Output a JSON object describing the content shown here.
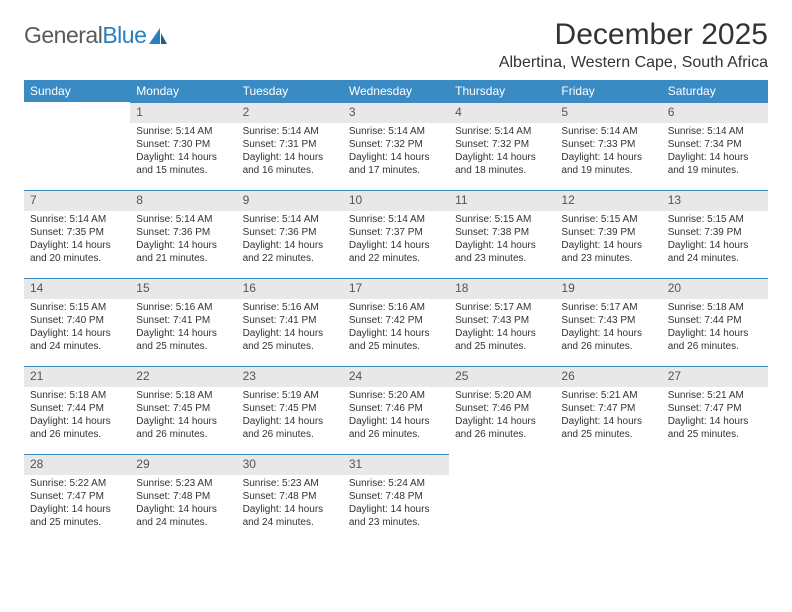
{
  "logo": {
    "part1": "General",
    "part2": "Blue"
  },
  "title": "December 2025",
  "location": "Albertina, Western Cape, South Africa",
  "colors": {
    "header_bg": "#3a8ac4",
    "header_text": "#ffffff",
    "daynum_bg": "#e8e8e8",
    "daynum_border": "#3a8ac4",
    "body_text": "#333333",
    "logo_gray": "#5a5a5a",
    "logo_blue": "#2a7fbf"
  },
  "weekdays": [
    "Sunday",
    "Monday",
    "Tuesday",
    "Wednesday",
    "Thursday",
    "Friday",
    "Saturday"
  ],
  "weeks": [
    [
      {
        "n": "",
        "sr": "",
        "ss": "",
        "dl": ""
      },
      {
        "n": "1",
        "sr": "Sunrise: 5:14 AM",
        "ss": "Sunset: 7:30 PM",
        "dl": "Daylight: 14 hours and 15 minutes."
      },
      {
        "n": "2",
        "sr": "Sunrise: 5:14 AM",
        "ss": "Sunset: 7:31 PM",
        "dl": "Daylight: 14 hours and 16 minutes."
      },
      {
        "n": "3",
        "sr": "Sunrise: 5:14 AM",
        "ss": "Sunset: 7:32 PM",
        "dl": "Daylight: 14 hours and 17 minutes."
      },
      {
        "n": "4",
        "sr": "Sunrise: 5:14 AM",
        "ss": "Sunset: 7:32 PM",
        "dl": "Daylight: 14 hours and 18 minutes."
      },
      {
        "n": "5",
        "sr": "Sunrise: 5:14 AM",
        "ss": "Sunset: 7:33 PM",
        "dl": "Daylight: 14 hours and 19 minutes."
      },
      {
        "n": "6",
        "sr": "Sunrise: 5:14 AM",
        "ss": "Sunset: 7:34 PM",
        "dl": "Daylight: 14 hours and 19 minutes."
      }
    ],
    [
      {
        "n": "7",
        "sr": "Sunrise: 5:14 AM",
        "ss": "Sunset: 7:35 PM",
        "dl": "Daylight: 14 hours and 20 minutes."
      },
      {
        "n": "8",
        "sr": "Sunrise: 5:14 AM",
        "ss": "Sunset: 7:36 PM",
        "dl": "Daylight: 14 hours and 21 minutes."
      },
      {
        "n": "9",
        "sr": "Sunrise: 5:14 AM",
        "ss": "Sunset: 7:36 PM",
        "dl": "Daylight: 14 hours and 22 minutes."
      },
      {
        "n": "10",
        "sr": "Sunrise: 5:14 AM",
        "ss": "Sunset: 7:37 PM",
        "dl": "Daylight: 14 hours and 22 minutes."
      },
      {
        "n": "11",
        "sr": "Sunrise: 5:15 AM",
        "ss": "Sunset: 7:38 PM",
        "dl": "Daylight: 14 hours and 23 minutes."
      },
      {
        "n": "12",
        "sr": "Sunrise: 5:15 AM",
        "ss": "Sunset: 7:39 PM",
        "dl": "Daylight: 14 hours and 23 minutes."
      },
      {
        "n": "13",
        "sr": "Sunrise: 5:15 AM",
        "ss": "Sunset: 7:39 PM",
        "dl": "Daylight: 14 hours and 24 minutes."
      }
    ],
    [
      {
        "n": "14",
        "sr": "Sunrise: 5:15 AM",
        "ss": "Sunset: 7:40 PM",
        "dl": "Daylight: 14 hours and 24 minutes."
      },
      {
        "n": "15",
        "sr": "Sunrise: 5:16 AM",
        "ss": "Sunset: 7:41 PM",
        "dl": "Daylight: 14 hours and 25 minutes."
      },
      {
        "n": "16",
        "sr": "Sunrise: 5:16 AM",
        "ss": "Sunset: 7:41 PM",
        "dl": "Daylight: 14 hours and 25 minutes."
      },
      {
        "n": "17",
        "sr": "Sunrise: 5:16 AM",
        "ss": "Sunset: 7:42 PM",
        "dl": "Daylight: 14 hours and 25 minutes."
      },
      {
        "n": "18",
        "sr": "Sunrise: 5:17 AM",
        "ss": "Sunset: 7:43 PM",
        "dl": "Daylight: 14 hours and 25 minutes."
      },
      {
        "n": "19",
        "sr": "Sunrise: 5:17 AM",
        "ss": "Sunset: 7:43 PM",
        "dl": "Daylight: 14 hours and 26 minutes."
      },
      {
        "n": "20",
        "sr": "Sunrise: 5:18 AM",
        "ss": "Sunset: 7:44 PM",
        "dl": "Daylight: 14 hours and 26 minutes."
      }
    ],
    [
      {
        "n": "21",
        "sr": "Sunrise: 5:18 AM",
        "ss": "Sunset: 7:44 PM",
        "dl": "Daylight: 14 hours and 26 minutes."
      },
      {
        "n": "22",
        "sr": "Sunrise: 5:18 AM",
        "ss": "Sunset: 7:45 PM",
        "dl": "Daylight: 14 hours and 26 minutes."
      },
      {
        "n": "23",
        "sr": "Sunrise: 5:19 AM",
        "ss": "Sunset: 7:45 PM",
        "dl": "Daylight: 14 hours and 26 minutes."
      },
      {
        "n": "24",
        "sr": "Sunrise: 5:20 AM",
        "ss": "Sunset: 7:46 PM",
        "dl": "Daylight: 14 hours and 26 minutes."
      },
      {
        "n": "25",
        "sr": "Sunrise: 5:20 AM",
        "ss": "Sunset: 7:46 PM",
        "dl": "Daylight: 14 hours and 26 minutes."
      },
      {
        "n": "26",
        "sr": "Sunrise: 5:21 AM",
        "ss": "Sunset: 7:47 PM",
        "dl": "Daylight: 14 hours and 25 minutes."
      },
      {
        "n": "27",
        "sr": "Sunrise: 5:21 AM",
        "ss": "Sunset: 7:47 PM",
        "dl": "Daylight: 14 hours and 25 minutes."
      }
    ],
    [
      {
        "n": "28",
        "sr": "Sunrise: 5:22 AM",
        "ss": "Sunset: 7:47 PM",
        "dl": "Daylight: 14 hours and 25 minutes."
      },
      {
        "n": "29",
        "sr": "Sunrise: 5:23 AM",
        "ss": "Sunset: 7:48 PM",
        "dl": "Daylight: 14 hours and 24 minutes."
      },
      {
        "n": "30",
        "sr": "Sunrise: 5:23 AM",
        "ss": "Sunset: 7:48 PM",
        "dl": "Daylight: 14 hours and 24 minutes."
      },
      {
        "n": "31",
        "sr": "Sunrise: 5:24 AM",
        "ss": "Sunset: 7:48 PM",
        "dl": "Daylight: 14 hours and 23 minutes."
      },
      {
        "n": "",
        "sr": "",
        "ss": "",
        "dl": ""
      },
      {
        "n": "",
        "sr": "",
        "ss": "",
        "dl": ""
      },
      {
        "n": "",
        "sr": "",
        "ss": "",
        "dl": ""
      }
    ]
  ]
}
